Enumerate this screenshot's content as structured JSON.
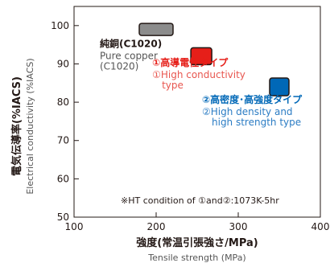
{
  "chart_data": {
    "type": "scatter",
    "xlim": [
      100,
      400
    ],
    "ylim": [
      50,
      105
    ],
    "x_ticks": [
      100,
      200,
      300,
      400
    ],
    "y_ticks": [
      50,
      60,
      70,
      80,
      90,
      100
    ],
    "x_tick_labels": [
      "100",
      "200",
      "300",
      "400"
    ],
    "y_tick_labels": [
      "50",
      "60",
      "70",
      "80",
      "90",
      "100"
    ],
    "xlabel": "強度(常温引張強さ/MPa)",
    "xlabel_en": "Tensile strength (MPa)",
    "ylabel": "電気伝導率(%IACS)",
    "ylabel_en": "Electrical conductivity (%IACS)",
    "grid": false,
    "series": [
      {
        "x": 200,
        "y": 99,
        "color": "#8c8c8c",
        "label_bold": "純銅(C1020)",
        "label_lines": [
          "Pure copper",
          "(C1020)"
        ],
        "label_color_bold": "#231815",
        "label_color_lines": "#555555"
      },
      {
        "x": 255,
        "y": 92,
        "color": "#e61f19",
        "label_bold": "①高導電性タイプ",
        "label_lines": [
          "①High conductivity",
          "type"
        ],
        "label_color_bold": "#e61f19",
        "label_color_lines": "#e8564f"
      },
      {
        "x": 350,
        "y": 84,
        "color": "#0068b7",
        "label_bold": "②高密度･高強度タイプ",
        "label_lines": [
          "②High density and",
          "high strength type"
        ],
        "label_color_bold": "#0068b7",
        "label_color_lines": "#2b7cc4"
      }
    ],
    "annotation": "※HT condition of ①and②:1073K-5hr"
  }
}
